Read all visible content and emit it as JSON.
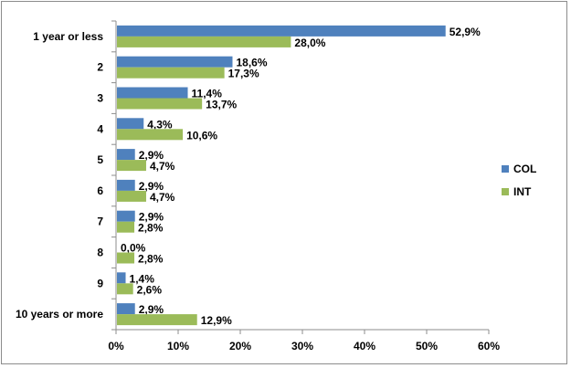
{
  "chart_data": {
    "type": "bar",
    "orientation": "horizontal",
    "categories": [
      "1 year or less",
      "2",
      "3",
      "4",
      "5",
      "6",
      "7",
      "8",
      "9",
      "10 years or more"
    ],
    "series": [
      {
        "name": "COL",
        "color": "#4f81bd",
        "values": [
          52.9,
          18.6,
          11.4,
          4.3,
          2.9,
          2.9,
          2.9,
          0.0,
          1.4,
          2.9
        ],
        "labels": [
          "52,9%",
          "18,6%",
          "11,4%",
          "4,3%",
          "2,9%",
          "2,9%",
          "2,9%",
          "0,0%",
          "1,4%",
          "2,9%"
        ]
      },
      {
        "name": "INT",
        "color": "#9bbb59",
        "values": [
          28.0,
          17.3,
          13.7,
          10.6,
          4.7,
          4.7,
          2.8,
          2.8,
          2.6,
          12.9
        ],
        "labels": [
          "28,0%",
          "17,3%",
          "13,7%",
          "10,6%",
          "4,7%",
          "4,7%",
          "2,8%",
          "2,8%",
          "2,6%",
          "12,9%"
        ]
      }
    ],
    "xlim": [
      0,
      60
    ],
    "xticks": [
      0,
      10,
      20,
      30,
      40,
      50,
      60
    ],
    "xtick_labels": [
      "0%",
      "10%",
      "20%",
      "30%",
      "40%",
      "50%",
      "60%"
    ],
    "grid": false,
    "legend": "right"
  }
}
